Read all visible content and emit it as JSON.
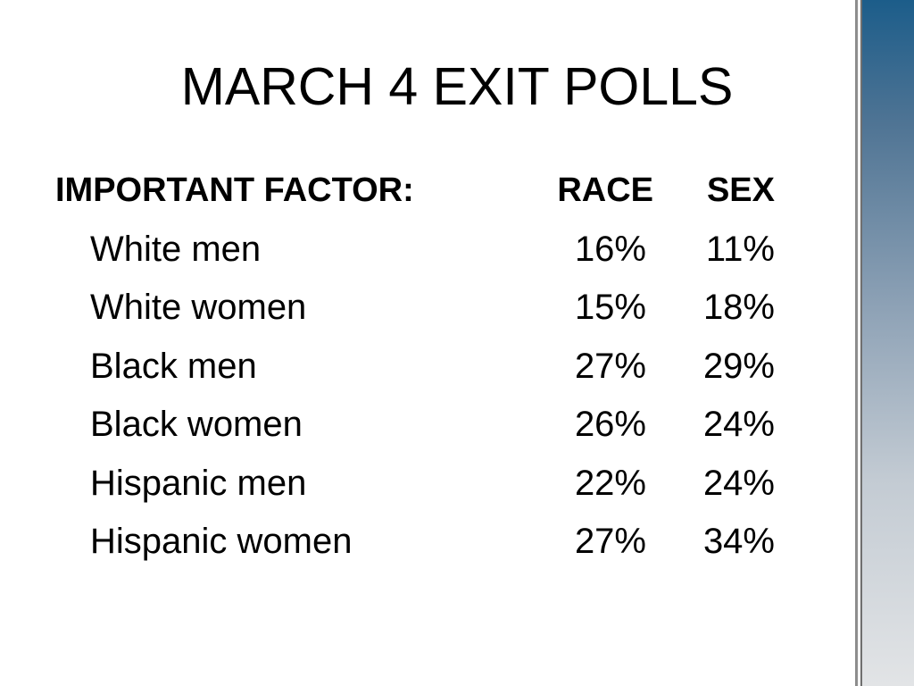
{
  "slide": {
    "title": "MARCH 4 EXIT POLLS"
  },
  "table": {
    "header": {
      "factor": "IMPORTANT FACTOR:",
      "race": "RACE",
      "sex": "SEX"
    },
    "rows": [
      {
        "group": "White men",
        "race": "16%",
        "sex": "11%"
      },
      {
        "group": "White women",
        "race": "15%",
        "sex": "18%"
      },
      {
        "group": "Black men",
        "race": "27%",
        "sex": "29%"
      },
      {
        "group": "Black women",
        "race": "26%",
        "sex": "24%"
      },
      {
        "group": "Hispanic men",
        "race": "22%",
        "sex": "24%"
      },
      {
        "group": "Hispanic women",
        "race": "27%",
        "sex": "34%"
      }
    ]
  },
  "theme": {
    "sidebar_top": "#1c5d8a",
    "sidebar_bottom": "#e2e4e6",
    "text": "#000000",
    "background": "#ffffff"
  }
}
